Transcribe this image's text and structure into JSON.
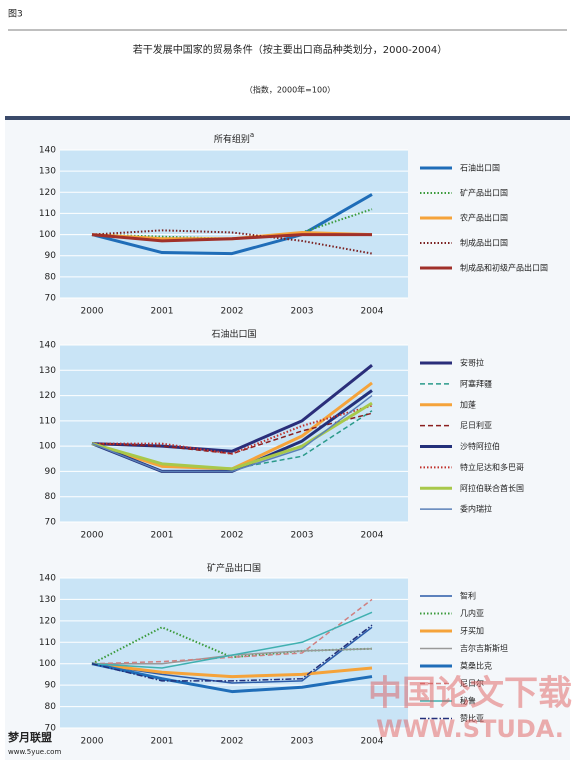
{
  "figure_label": "图3",
  "title": "若干发展中国家的贸易条件（按主要出口商品种类划分，2000-2004）",
  "subtitle": "（指数，2000年=100）",
  "watermark": "中国论文下载",
  "watermark_url": "WWW.STUDA.",
  "corner_logo": "梦月联盟",
  "corner_url": "www.5yue.com",
  "chart_data": [
    {
      "type": "line",
      "title": "所有组别",
      "title_note": "a",
      "categories": [
        "2000",
        "2001",
        "2002",
        "2003",
        "2004"
      ],
      "ylim": [
        70,
        140
      ],
      "yticks": [
        70,
        80,
        90,
        100,
        110,
        120,
        130,
        140
      ],
      "grid": true,
      "series": [
        {
          "name": "石油出口国",
          "color": "#1f6db8",
          "style": "thick",
          "values": [
            100,
            91.5,
            91,
            100,
            119
          ]
        },
        {
          "name": "矿产品出口国",
          "color": "#3a9a3a",
          "style": "dotted",
          "values": [
            100,
            99,
            98,
            101,
            112
          ]
        },
        {
          "name": "农产品出口国",
          "color": "#f5a33a",
          "style": "thick",
          "values": [
            100,
            98,
            98,
            101,
            100
          ]
        },
        {
          "name": "制成品出口国",
          "color": "#7a1f1f",
          "style": "dotted",
          "values": [
            100,
            102,
            101,
            97,
            91
          ]
        },
        {
          "name": "制成品和初级产品出口国",
          "color": "#a0302a",
          "style": "thick",
          "values": [
            100,
            97,
            98,
            100,
            100
          ]
        }
      ]
    },
    {
      "type": "line",
      "title": "石油出口国",
      "categories": [
        "2000",
        "2001",
        "2002",
        "2003",
        "2004"
      ],
      "ylim": [
        70,
        140
      ],
      "yticks": [
        70,
        80,
        90,
        100,
        110,
        120,
        130,
        140
      ],
      "grid": true,
      "series": [
        {
          "name": "安哥拉",
          "color": "#2a2e7a",
          "style": "thick",
          "values": [
            101,
            100,
            98,
            110,
            132
          ]
        },
        {
          "name": "阿塞拜疆",
          "color": "#2a9a8a",
          "style": "dashed",
          "values": [
            101,
            92,
            91,
            96,
            114
          ]
        },
        {
          "name": "加蓬",
          "color": "#f5a33a",
          "style": "thick",
          "values": [
            101,
            92,
            91,
            104,
            125
          ]
        },
        {
          "name": "尼日利亚",
          "color": "#8a1f1f",
          "style": "dashed",
          "values": [
            101,
            100,
            97,
            106,
            113
          ]
        },
        {
          "name": "沙特阿拉伯",
          "color": "#23307a",
          "style": "thick",
          "values": [
            101,
            90,
            90,
            102,
            122
          ]
        },
        {
          "name": "特立尼达和多巴哥",
          "color": "#c0302a",
          "style": "dotted",
          "values": [
            101,
            101,
            97,
            108,
            116
          ]
        },
        {
          "name": "阿拉伯联合酋长国",
          "color": "#a8c84a",
          "style": "thick",
          "values": [
            101,
            93,
            91,
            100,
            117
          ]
        },
        {
          "name": "委内瑞拉",
          "color": "#5a80b8",
          "style": "solid",
          "values": [
            101,
            90,
            90,
            99,
            120
          ]
        }
      ]
    },
    {
      "type": "line",
      "title": "矿产品出口国",
      "categories": [
        "2000",
        "2001",
        "2002",
        "2003",
        "2004"
      ],
      "ylim": [
        70,
        140
      ],
      "yticks": [
        70,
        80,
        90,
        100,
        110,
        120,
        130,
        140
      ],
      "grid": true,
      "series": [
        {
          "name": "智利",
          "color": "#2a5aa8",
          "style": "solid",
          "values": [
            100,
            95,
            91,
            92,
            117
          ]
        },
        {
          "name": "几内亚",
          "color": "#3a9a3a",
          "style": "dotted",
          "values": [
            100,
            117,
            103,
            106,
            107
          ]
        },
        {
          "name": "牙买加",
          "color": "#f5a33a",
          "style": "thick",
          "values": [
            100,
            96,
            94,
            95,
            98
          ]
        },
        {
          "name": "吉尔吉斯斯坦",
          "color": "#999999",
          "style": "solid",
          "values": [
            100,
            100,
            104,
            106,
            107
          ]
        },
        {
          "name": "莫桑比克",
          "color": "#1f6db8",
          "style": "thick",
          "values": [
            100,
            93,
            87,
            89,
            94
          ]
        },
        {
          "name": "尼日尔",
          "color": "#d08080",
          "style": "dashed",
          "values": [
            100,
            101,
            103,
            105,
            130
          ]
        },
        {
          "name": "秘鲁",
          "color": "#40b0b0",
          "style": "solid",
          "values": [
            100,
            98,
            104,
            110,
            124
          ]
        },
        {
          "name": "赞比亚",
          "color": "#23307a",
          "style": "dashdot",
          "values": [
            100,
            92,
            92,
            93,
            118
          ]
        }
      ]
    }
  ]
}
